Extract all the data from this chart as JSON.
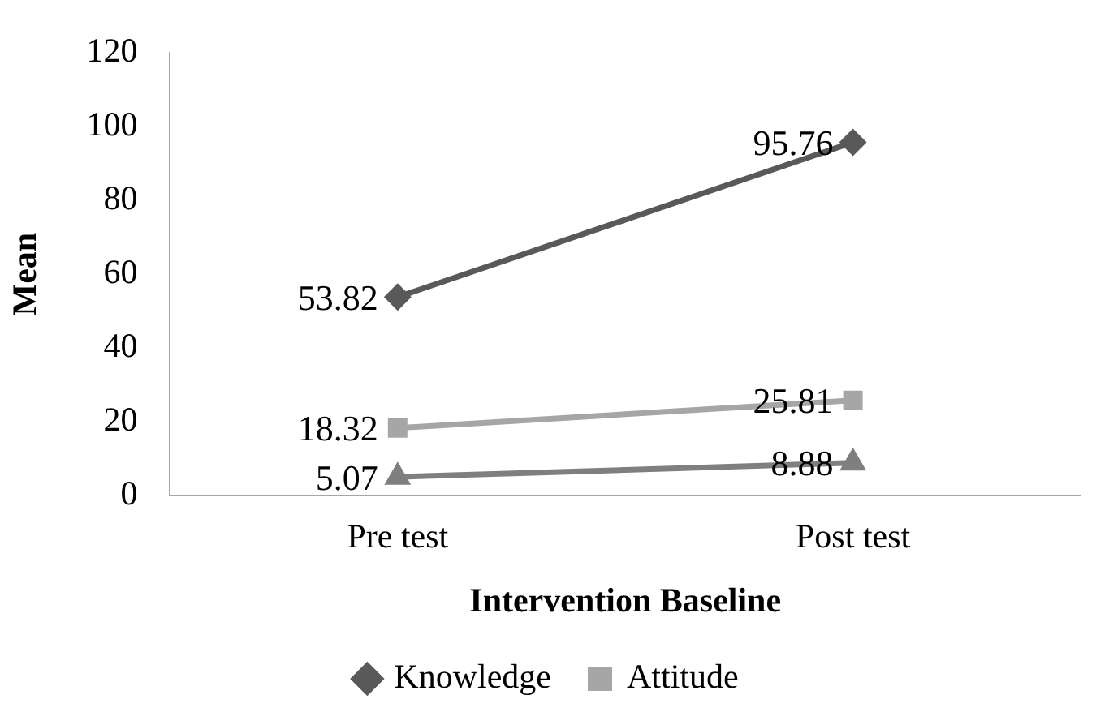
{
  "chart_data": {
    "type": "line",
    "xlabel": "Intervention Baseline",
    "ylabel": "Mean",
    "categories": [
      "Pre test",
      "Post test"
    ],
    "series": [
      {
        "name": "Knowledge",
        "color": "#595959",
        "marker": "diamond",
        "values": [
          53.82,
          95.76
        ]
      },
      {
        "name": "Attitude",
        "color": "#a6a6a6",
        "marker": "square",
        "values": [
          18.32,
          25.81
        ]
      },
      {
        "color": "#7f7f7f",
        "marker": "triangle",
        "values": [
          5.07,
          8.88
        ]
      }
    ],
    "ylim": [
      0,
      120
    ],
    "yticks": [
      0,
      20,
      40,
      60,
      80,
      100,
      120
    ],
    "grid": false,
    "legend": "bottom",
    "data_labels": true
  }
}
